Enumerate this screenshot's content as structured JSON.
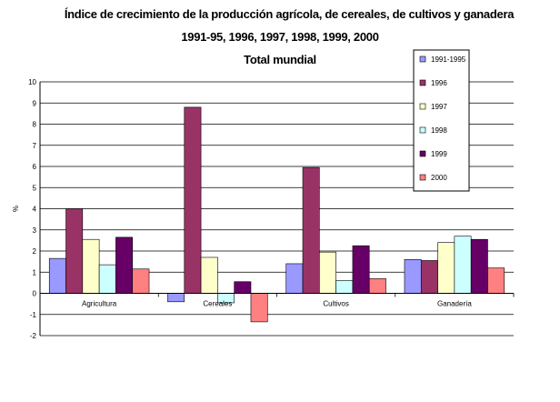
{
  "chart_data": {
    "type": "bar",
    "title": "Índice de crecimiento de la producción agrícola, de cereales, de cultivos y ganadera",
    "subtitle": "1991-95, 1996, 1997, 1998, 1999, 2000",
    "subtitle2": "Total mundial",
    "ylabel": "%",
    "xlabel": "",
    "ylim": [
      -2,
      10
    ],
    "yticks": [
      "-2",
      "-1",
      "0",
      "1",
      "2",
      "3",
      "4",
      "5",
      "6",
      "7",
      "8",
      "9",
      "10"
    ],
    "grid": true,
    "legend_position": "top-right",
    "categories": [
      "Agricultura",
      "Cereales",
      "Cultivos",
      "Ganadería"
    ],
    "series": [
      {
        "name": "1991-1995",
        "color": "#9999ff",
        "values": [
          1.65,
          -0.4,
          1.4,
          1.6
        ]
      },
      {
        "name": "1996",
        "color": "#993366",
        "values": [
          4.0,
          8.8,
          5.95,
          1.55
        ]
      },
      {
        "name": "1997",
        "color": "#ffffcc",
        "values": [
          2.55,
          1.7,
          1.95,
          2.4
        ]
      },
      {
        "name": "1998",
        "color": "#ccffff",
        "values": [
          1.35,
          -0.45,
          0.6,
          2.7
        ]
      },
      {
        "name": "1999",
        "color": "#660066",
        "values": [
          2.65,
          0.55,
          2.25,
          2.55
        ]
      },
      {
        "name": "2000",
        "color": "#ff8080",
        "values": [
          1.15,
          -1.35,
          0.7,
          1.2
        ]
      }
    ]
  }
}
